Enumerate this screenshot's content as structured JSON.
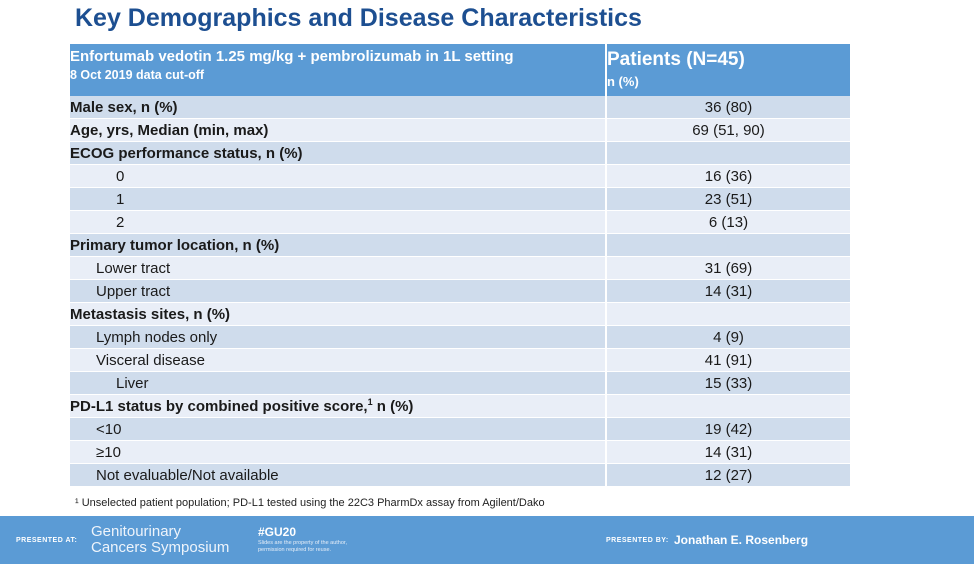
{
  "title": "Key Demographics and Disease Characteristics",
  "table": {
    "header": {
      "left_line1": "Enfortumab vedotin 1.25 mg/kg + pembrolizumab in 1L setting",
      "left_line2": "8 Oct 2019 data cut-off",
      "right_line1": "Patients (N=45)",
      "right_line2": "n (%)"
    },
    "rows": [
      {
        "label": "Male sex, n (%)",
        "value": "36 (80)",
        "level": 0
      },
      {
        "label": "Age, yrs, Median (min, max)",
        "value": "69 (51, 90)",
        "level": 0
      },
      {
        "label": "ECOG performance status, n (%)",
        "value": "",
        "level": 0
      },
      {
        "label": "0",
        "value": "16 (36)",
        "level": 3
      },
      {
        "label": "1",
        "value": "23 (51)",
        "level": 3
      },
      {
        "label": "2",
        "value": "6 (13)",
        "level": 3
      },
      {
        "label": "Primary tumor location, n (%)",
        "value": "",
        "level": 0
      },
      {
        "label": "Lower tract",
        "value": "31 (69)",
        "level": 1
      },
      {
        "label": "Upper tract",
        "value": "14 (31)",
        "level": 1
      },
      {
        "label": "Metastasis sites, n (%)",
        "value": "",
        "level": 0
      },
      {
        "label": "Lymph nodes only",
        "value": "4 (9)",
        "level": 1
      },
      {
        "label": "Visceral disease",
        "value": "41 (91)",
        "level": 1
      },
      {
        "label": "Liver",
        "value": "15 (33)",
        "level": 2
      },
      {
        "label": "PD-L1 status by combined positive score,",
        "sup": "1",
        "label_suffix": " n (%)",
        "value": "",
        "level": 0
      },
      {
        "label": "<10",
        "value": "19 (42)",
        "level": 1
      },
      {
        "label": "≥10",
        "value": "14 (31)",
        "level": 1
      },
      {
        "label": "Not evaluable/Not available",
        "value": "12 (27)",
        "level": 1
      }
    ]
  },
  "footnote": "¹ Unselected patient population; PD-L1 tested using the 22C3 PharmDx assay from Agilent/Dako",
  "footer": {
    "presented_at": "PRESENTED AT:",
    "logo_line1": "Genitourinary",
    "logo_line2": "Cancers Symposium",
    "hashtag": "#GU20",
    "disclaimer": "Slides are the property of the author, permission required for reuse.",
    "presented_by": "PRESENTED BY:",
    "presenter": "Jonathan E. Rosenberg"
  },
  "colors": {
    "title": "#1d4f91",
    "header": "#5b9bd5",
    "band_dark": "#cfdcec",
    "band_light": "#e9eef7"
  }
}
